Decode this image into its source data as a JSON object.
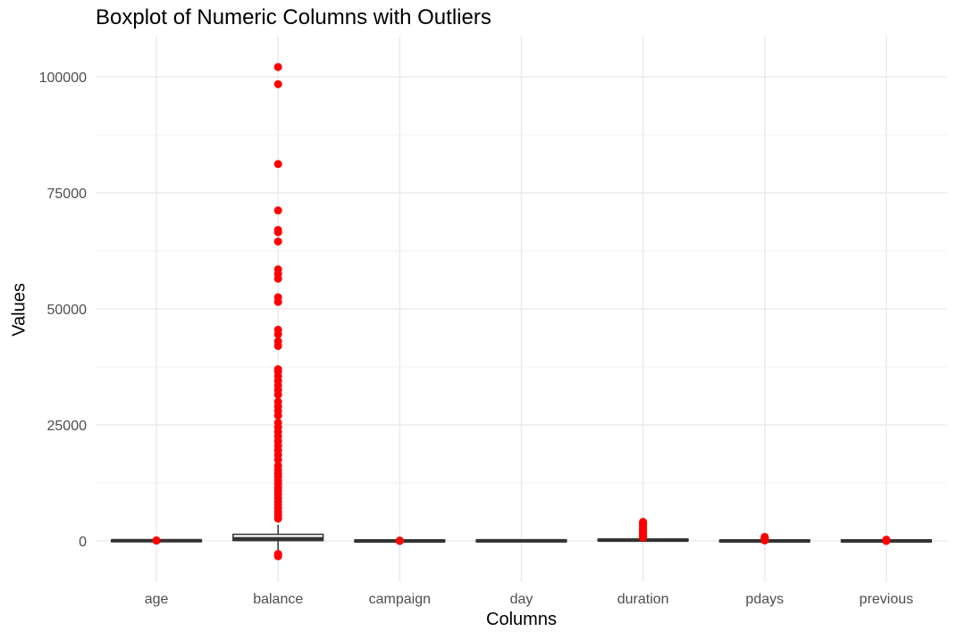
{
  "chart_data": {
    "type": "boxplot",
    "title": "Boxplot of Numeric Columns with Outliers",
    "xlabel": "Columns",
    "ylabel": "Values",
    "ylim": [
      -8000,
      107000
    ],
    "yticks": [
      0,
      25000,
      50000,
      75000,
      100000
    ],
    "ytick_labels": [
      "0",
      "25000",
      "50000",
      "75000",
      "100000"
    ],
    "grid": true,
    "outlier_color": "#ff0000",
    "box_color": "#333333",
    "categories": [
      "age",
      "balance",
      "campaign",
      "day",
      "duration",
      "pdays",
      "previous"
    ],
    "boxes": [
      {
        "name": "age",
        "min": 18,
        "q1": 33,
        "median": 39,
        "q3": 48,
        "max": 70,
        "outliers": [
          75,
          80,
          86,
          95
        ]
      },
      {
        "name": "balance",
        "min": -1950,
        "q1": 72,
        "median": 448,
        "q3": 1428,
        "max": 3460,
        "outliers": [
          -3300,
          -3000,
          -2800,
          4800,
          5500,
          6200,
          7000,
          7800,
          8500,
          9200,
          10000,
          10800,
          11500,
          12300,
          13000,
          13800,
          14500,
          15300,
          16200,
          17500,
          18500,
          19500,
          20500,
          21500,
          22500,
          23500,
          24500,
          25500,
          27000,
          28000,
          29000,
          30000,
          31500,
          32500,
          33500,
          34500,
          35500,
          36500,
          37000,
          42000,
          43000,
          44500,
          45500,
          51500,
          52500,
          56500,
          57500,
          58500,
          64500,
          66500,
          67000,
          71200,
          81200,
          98400,
          102100
        ]
      },
      {
        "name": "campaign",
        "min": 1,
        "q1": 1,
        "median": 2,
        "q3": 3,
        "max": 6,
        "outliers": [
          10,
          20,
          30,
          45,
          63
        ]
      },
      {
        "name": "day",
        "min": 1,
        "q1": 8,
        "median": 16,
        "q3": 21,
        "max": 31,
        "outliers": []
      },
      {
        "name": "duration",
        "min": 0,
        "q1": 103,
        "median": 180,
        "q3": 319,
        "max": 643,
        "outliers": [
          700,
          900,
          1100,
          1300,
          1500,
          1700,
          1900,
          2100,
          2300,
          2500,
          2700,
          2900,
          3100,
          3300,
          3500,
          3700,
          3900,
          4100
        ]
      },
      {
        "name": "pdays",
        "min": -1,
        "q1": -1,
        "median": -1,
        "q3": -1,
        "max": -1,
        "outliers": [
          100,
          200,
          300,
          400,
          500,
          600,
          700,
          800,
          871
        ]
      },
      {
        "name": "previous",
        "min": 0,
        "q1": 0,
        "median": 0,
        "q3": 0,
        "max": 0,
        "outliers": [
          5,
          20,
          50,
          100,
          200,
          275
        ]
      }
    ]
  }
}
